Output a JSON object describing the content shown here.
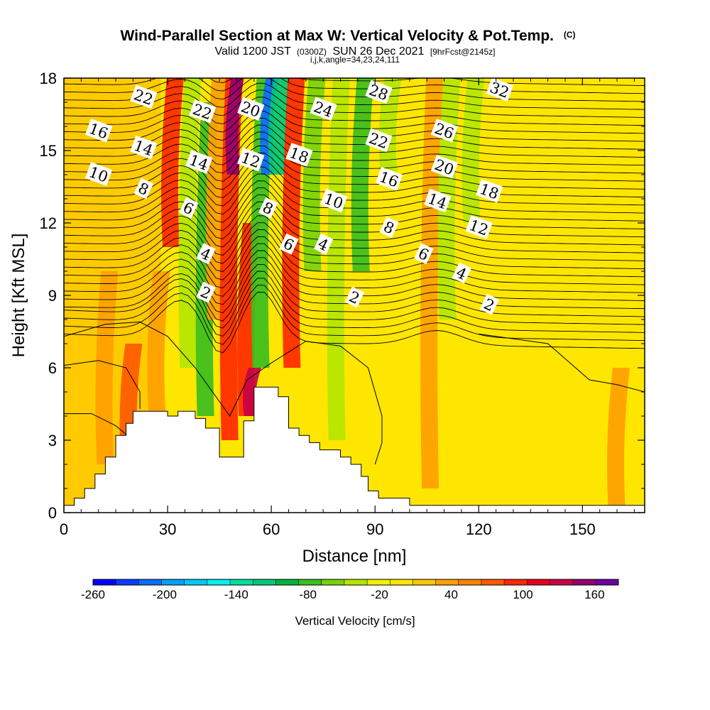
{
  "title": {
    "main": "Wind-Parallel Section at Max W: Vertical Velocity & Pot.Temp.",
    "main_suffix": "(C)",
    "valid_prefix": "Valid 1200 JST",
    "valid_utc": "(0300Z)",
    "valid_date": "SUN 26 Dec 2021",
    "forecast": "[9hrFcst@2145z]",
    "indices": "i,j,k,angle=34,23,24,111"
  },
  "chart_data": {
    "type": "heatmap",
    "xlabel": "Distance [nm]",
    "ylabel": "Height [Kft MSL]",
    "xlim": [
      0,
      168
    ],
    "ylim": [
      0,
      18
    ],
    "x_ticks": [
      0,
      30,
      60,
      90,
      120,
      150
    ],
    "y_ticks": [
      0,
      3,
      6,
      9,
      12,
      15,
      18
    ],
    "grid": false,
    "colorbar": {
      "label": "Vertical Velocity [cm/s]",
      "levels": [
        -260,
        -240,
        -220,
        -200,
        -180,
        -160,
        -140,
        -120,
        -100,
        -80,
        -60,
        -40,
        -20,
        0,
        20,
        40,
        60,
        80,
        100,
        120,
        140,
        160,
        180
      ],
      "tick_labels": [
        -260,
        -200,
        -140,
        -80,
        -20,
        40,
        100,
        160
      ],
      "colors": [
        "#0000ff",
        "#0a3cff",
        "#0a6eff",
        "#00a0ff",
        "#00c8ff",
        "#00f0f0",
        "#00e0a0",
        "#00c878",
        "#00b43c",
        "#3cbe1e",
        "#78d20a",
        "#b4e600",
        "#f0f000",
        "#ffe600",
        "#ffc800",
        "#ffa000",
        "#ff8200",
        "#ff5a00",
        "#ff2800",
        "#e6001e",
        "#c80046",
        "#96006e",
        "#6e00a0"
      ]
    },
    "terrain_height_kft": [
      [
        0,
        0.3
      ],
      [
        3,
        0.6
      ],
      [
        6,
        1.0
      ],
      [
        9,
        1.6
      ],
      [
        12,
        2.3
      ],
      [
        15,
        3.2
      ],
      [
        18,
        3.7
      ],
      [
        20,
        4.2
      ],
      [
        30,
        4.0
      ],
      [
        33,
        4.2
      ],
      [
        38,
        3.9
      ],
      [
        41,
        3.5
      ],
      [
        45,
        2.3
      ],
      [
        51,
        2.3
      ],
      [
        52,
        3.8
      ],
      [
        55,
        5.2
      ],
      [
        62,
        4.8
      ],
      [
        65,
        3.5
      ],
      [
        68,
        3.2
      ],
      [
        71,
        2.9
      ],
      [
        74,
        2.6
      ],
      [
        80,
        2.3
      ],
      [
        83,
        2.0
      ],
      [
        86,
        1.5
      ],
      [
        88,
        0.9
      ],
      [
        91,
        0.6
      ],
      [
        100,
        0.3
      ],
      [
        168,
        0.3
      ]
    ],
    "vertical_velocity_cm_s": [
      {
        "x": 12,
        "y_range": [
          2,
          10
        ],
        "value": 40
      },
      {
        "x": 19,
        "y_range": [
          2,
          7
        ],
        "value": 80
      },
      {
        "x": 27,
        "y_range": [
          4,
          10
        ],
        "value": 40
      },
      {
        "x": 31,
        "y_range": [
          11,
          18
        ],
        "value": 100
      },
      {
        "x": 36,
        "y_range": [
          6,
          18
        ],
        "value": -40
      },
      {
        "x": 41,
        "y_range": [
          4,
          17
        ],
        "value": -80
      },
      {
        "x": 44,
        "y_range": [
          8,
          18
        ],
        "value": 40
      },
      {
        "x": 48,
        "y_range": [
          3,
          18
        ],
        "value": 100
      },
      {
        "x": 49,
        "y_range": [
          14,
          18
        ],
        "value": 160
      },
      {
        "x": 53,
        "y_range": [
          4,
          12
        ],
        "value": 100
      },
      {
        "x": 54,
        "y_range": [
          4,
          6
        ],
        "value": 140
      },
      {
        "x": 57,
        "y_range": [
          6,
          18
        ],
        "value": -80
      },
      {
        "x": 59,
        "y_range": [
          14,
          18
        ],
        "value": -220
      },
      {
        "x": 62,
        "y_range": [
          14,
          18
        ],
        "value": -120
      },
      {
        "x": 66,
        "y_range": [
          6,
          18
        ],
        "value": 100
      },
      {
        "x": 72,
        "y_range": [
          10,
          18
        ],
        "value": -60
      },
      {
        "x": 79,
        "y_range": [
          3,
          18
        ],
        "value": -40
      },
      {
        "x": 86,
        "y_range": [
          10,
          18
        ],
        "value": -80
      },
      {
        "x": 94,
        "y_range": [
          14,
          18
        ],
        "value": -40
      },
      {
        "x": 106,
        "y_range": [
          1,
          18
        ],
        "value": 40
      },
      {
        "x": 111,
        "y_range": [
          8,
          18
        ],
        "value": -40
      },
      {
        "x": 118,
        "y_range": [
          12,
          18
        ],
        "value": -40
      },
      {
        "x": 160,
        "y_range": [
          0,
          6
        ],
        "value": 40
      }
    ],
    "pot_temp_contour_labels": [
      {
        "label": "22",
        "x": 23,
        "y": 17.2
      },
      {
        "label": "22",
        "x": 40,
        "y": 16.6
      },
      {
        "label": "20",
        "x": 54,
        "y": 16.7
      },
      {
        "label": "24",
        "x": 75,
        "y": 16.7
      },
      {
        "label": "28",
        "x": 91,
        "y": 17.4
      },
      {
        "label": "32",
        "x": 126,
        "y": 17.5
      },
      {
        "label": "16",
        "x": 10,
        "y": 15.8
      },
      {
        "label": "14",
        "x": 23,
        "y": 15.1
      },
      {
        "label": "14",
        "x": 39,
        "y": 14.5
      },
      {
        "label": "12",
        "x": 54,
        "y": 14.6
      },
      {
        "label": "18",
        "x": 68,
        "y": 14.8
      },
      {
        "label": "22",
        "x": 91,
        "y": 15.4
      },
      {
        "label": "26",
        "x": 110,
        "y": 15.8
      },
      {
        "label": "20",
        "x": 110,
        "y": 14.3
      },
      {
        "label": "10",
        "x": 10,
        "y": 14.0
      },
      {
        "label": "8",
        "x": 23,
        "y": 13.4
      },
      {
        "label": "16",
        "x": 94,
        "y": 13.8
      },
      {
        "label": "6",
        "x": 36,
        "y": 12.6
      },
      {
        "label": "8",
        "x": 59,
        "y": 12.6
      },
      {
        "label": "10",
        "x": 78,
        "y": 12.9
      },
      {
        "label": "14",
        "x": 108,
        "y": 12.9
      },
      {
        "label": "18",
        "x": 123,
        "y": 13.3
      },
      {
        "label": "8",
        "x": 94,
        "y": 11.8
      },
      {
        "label": "12",
        "x": 120,
        "y": 11.8
      },
      {
        "label": "6",
        "x": 65,
        "y": 11.1
      },
      {
        "label": "4",
        "x": 75,
        "y": 11.1
      },
      {
        "label": "6",
        "x": 104,
        "y": 10.7
      },
      {
        "label": "4",
        "x": 41,
        "y": 10.7
      },
      {
        "label": "4",
        "x": 115,
        "y": 9.9
      },
      {
        "label": "2",
        "x": 41,
        "y": 9.1
      },
      {
        "label": "2",
        "x": 84,
        "y": 8.9
      },
      {
        "label": "2",
        "x": 123,
        "y": 8.6
      }
    ]
  }
}
